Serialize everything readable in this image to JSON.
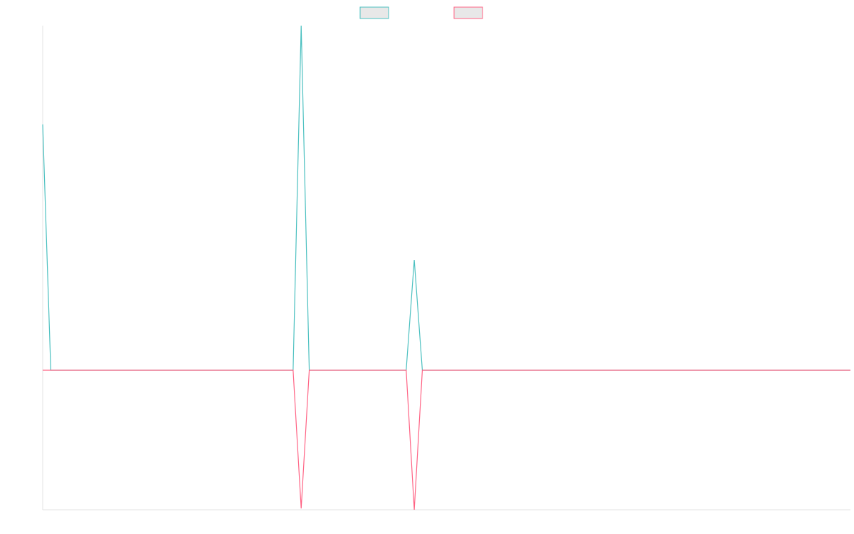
{
  "chart_data": {
    "type": "line",
    "title": "",
    "xlabel": "",
    "ylabel": "",
    "grid": false,
    "legend": {
      "placement": "top-center",
      "show_text": false
    },
    "x_count": 101,
    "ylim": [
      -1,
      1.7
    ],
    "series": [
      {
        "color": "#4bc0c0",
        "fill": "#e8e8e8",
        "points": [
          {
            "i": 0,
            "y": 1.27
          },
          {
            "i": 1,
            "y": 0
          },
          {
            "i": 31,
            "y": 0
          },
          {
            "i": 32,
            "y": 1.78
          },
          {
            "i": 33,
            "y": 0
          },
          {
            "i": 45,
            "y": 0
          },
          {
            "i": 46,
            "y": 0.57
          },
          {
            "i": 47,
            "y": 0
          },
          {
            "i": 100,
            "y": 0
          }
        ]
      },
      {
        "color": "#ff6384",
        "fill": "#e8e8e8",
        "points": [
          {
            "i": 0,
            "y": 0
          },
          {
            "i": 31,
            "y": 0
          },
          {
            "i": 32,
            "y": -0.99
          },
          {
            "i": 33,
            "y": 0
          },
          {
            "i": 45,
            "y": 0
          },
          {
            "i": 46,
            "y": -1.0
          },
          {
            "i": 47,
            "y": 0
          },
          {
            "i": 100,
            "y": 0
          }
        ]
      }
    ]
  }
}
